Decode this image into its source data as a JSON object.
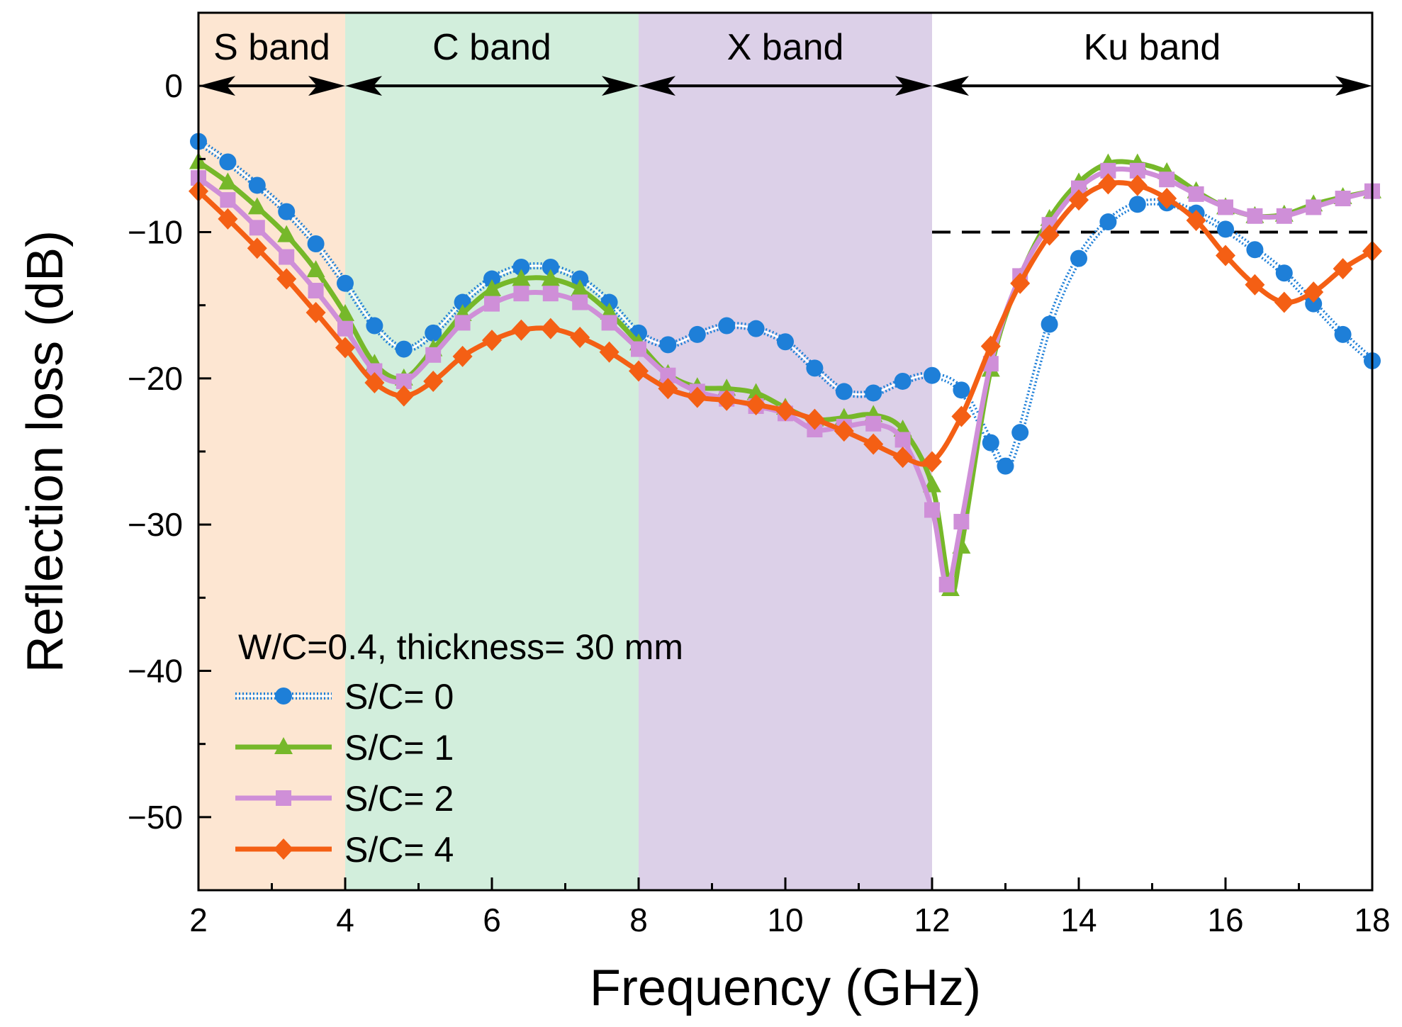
{
  "chart_data": {
    "type": "line",
    "xlabel": "Frequency (GHz)",
    "ylabel": "Reflection loss (dB)",
    "xlim": [
      2,
      18
    ],
    "ylim": [
      -55,
      5
    ],
    "x_ticks": [
      2,
      4,
      6,
      8,
      10,
      12,
      14,
      16,
      18
    ],
    "y_ticks": [
      0,
      -10,
      -20,
      -30,
      -40,
      -50
    ],
    "x_tick_labels": [
      "2",
      "4",
      "6",
      "8",
      "10",
      "12",
      "14",
      "16",
      "18"
    ],
    "y_tick_labels": [
      "0",
      "−10",
      "−20",
      "−30",
      "−40",
      "−50"
    ],
    "bands": [
      {
        "label": "S band",
        "from": 2,
        "to": 4,
        "color": "#fde6d2"
      },
      {
        "label": "C band",
        "from": 4,
        "to": 8,
        "color": "#d2eedc"
      },
      {
        "label": "X band",
        "from": 8,
        "to": 12,
        "color": "#dcd0e8"
      },
      {
        "label": "Ku band",
        "from": 12,
        "to": 18,
        "color": "#ffffff"
      }
    ],
    "reference_line": {
      "y": -10,
      "from": 12,
      "to": 18,
      "style": "dashed"
    },
    "legend_title": "W/C=0.4, thickness= 30 mm",
    "legend_position": "bottom-left",
    "series": [
      {
        "name": "S/C= 0",
        "color": "#1e7fd8",
        "marker": "circle",
        "line_style": "dotted-double",
        "x": [
          2.0,
          2.4,
          2.8,
          3.2,
          3.6,
          4.0,
          4.4,
          4.8,
          5.2,
          5.6,
          6.0,
          6.4,
          6.8,
          7.2,
          7.6,
          8.0,
          8.4,
          8.8,
          9.2,
          9.6,
          10.0,
          10.4,
          10.8,
          11.2,
          11.6,
          12.0,
          12.4,
          12.8,
          13.0,
          13.2,
          13.6,
          14.0,
          14.4,
          14.8,
          15.2,
          15.6,
          16.0,
          16.4,
          16.8,
          17.2,
          17.6,
          18.0
        ],
        "values": [
          -3.8,
          -5.2,
          -6.8,
          -8.6,
          -10.8,
          -13.5,
          -16.4,
          -18.0,
          -16.9,
          -14.8,
          -13.2,
          -12.4,
          -12.4,
          -13.2,
          -14.8,
          -16.9,
          -17.7,
          -17.0,
          -16.4,
          -16.6,
          -17.5,
          -19.3,
          -20.9,
          -21.0,
          -20.2,
          -19.8,
          -20.8,
          -24.4,
          -26.0,
          -23.7,
          -16.3,
          -11.8,
          -9.3,
          -8.1,
          -8.0,
          -8.7,
          -9.8,
          -11.2,
          -12.8,
          -14.9,
          -17.0,
          -18.8
        ]
      },
      {
        "name": "S/C= 1",
        "color": "#76b82a",
        "marker": "triangle",
        "line_style": "solid",
        "x": [
          2.0,
          2.4,
          2.8,
          3.2,
          3.6,
          4.0,
          4.4,
          4.8,
          5.2,
          5.6,
          6.0,
          6.4,
          6.8,
          7.2,
          7.6,
          8.0,
          8.4,
          8.8,
          9.2,
          9.6,
          10.0,
          10.4,
          10.8,
          11.2,
          11.6,
          12.0,
          12.25,
          12.4,
          12.8,
          13.2,
          13.6,
          14.0,
          14.4,
          14.8,
          15.2,
          15.6,
          16.0,
          16.4,
          16.8,
          17.2,
          17.6,
          18.0
        ],
        "values": [
          -5.2,
          -6.6,
          -8.3,
          -10.2,
          -12.6,
          -15.6,
          -19.0,
          -20.0,
          -18.0,
          -15.6,
          -13.9,
          -13.2,
          -13.2,
          -13.9,
          -15.5,
          -17.6,
          -19.7,
          -20.6,
          -20.7,
          -21.0,
          -22.0,
          -22.8,
          -22.7,
          -22.5,
          -23.5,
          -27.3,
          -34.4,
          -31.5,
          -19.4,
          -13.1,
          -9.1,
          -6.6,
          -5.3,
          -5.3,
          -5.9,
          -7.2,
          -8.3,
          -8.9,
          -8.8,
          -8.1,
          -7.6,
          -7.2
        ]
      },
      {
        "name": "S/C= 2",
        "color": "#cf8fd8",
        "marker": "square",
        "line_style": "solid",
        "x": [
          2.0,
          2.4,
          2.8,
          3.2,
          3.6,
          4.0,
          4.4,
          4.8,
          5.2,
          5.6,
          6.0,
          6.4,
          6.8,
          7.2,
          7.6,
          8.0,
          8.4,
          8.8,
          9.2,
          9.6,
          10.0,
          10.4,
          10.8,
          11.2,
          11.6,
          12.0,
          12.2,
          12.4,
          12.8,
          13.2,
          13.6,
          14.0,
          14.4,
          14.8,
          15.2,
          15.6,
          16.0,
          16.4,
          16.8,
          17.2,
          17.6,
          18.0
        ],
        "values": [
          -6.3,
          -7.8,
          -9.7,
          -11.7,
          -14.0,
          -16.6,
          -19.5,
          -20.2,
          -18.4,
          -16.2,
          -14.9,
          -14.2,
          -14.2,
          -14.8,
          -16.2,
          -18.0,
          -19.8,
          -20.9,
          -21.4,
          -21.9,
          -22.4,
          -23.5,
          -23.3,
          -23.1,
          -24.2,
          -29.0,
          -34.1,
          -29.8,
          -19.0,
          -13.0,
          -9.5,
          -7.0,
          -5.8,
          -5.8,
          -6.4,
          -7.4,
          -8.3,
          -8.9,
          -8.9,
          -8.3,
          -7.7,
          -7.2
        ]
      },
      {
        "name": "S/C= 4",
        "color": "#f45f14",
        "marker": "diamond",
        "line_style": "solid",
        "x": [
          2.0,
          2.4,
          2.8,
          3.2,
          3.6,
          4.0,
          4.4,
          4.8,
          5.2,
          5.6,
          6.0,
          6.4,
          6.8,
          7.2,
          7.6,
          8.0,
          8.4,
          8.8,
          9.2,
          9.6,
          10.0,
          10.4,
          10.8,
          11.2,
          11.6,
          12.0,
          12.4,
          12.8,
          13.2,
          13.6,
          14.0,
          14.4,
          14.8,
          15.2,
          15.6,
          16.0,
          16.4,
          16.8,
          17.2,
          17.6,
          18.0
        ],
        "values": [
          -7.2,
          -9.1,
          -11.1,
          -13.2,
          -15.5,
          -17.9,
          -20.3,
          -21.2,
          -20.2,
          -18.5,
          -17.4,
          -16.7,
          -16.6,
          -17.2,
          -18.2,
          -19.5,
          -20.7,
          -21.3,
          -21.5,
          -21.8,
          -22.2,
          -22.8,
          -23.6,
          -24.5,
          -25.4,
          -25.7,
          -22.6,
          -17.8,
          -13.5,
          -10.2,
          -7.8,
          -6.7,
          -6.8,
          -7.7,
          -9.2,
          -11.6,
          -13.6,
          -14.8,
          -14.1,
          -12.5,
          -11.3
        ]
      }
    ]
  }
}
